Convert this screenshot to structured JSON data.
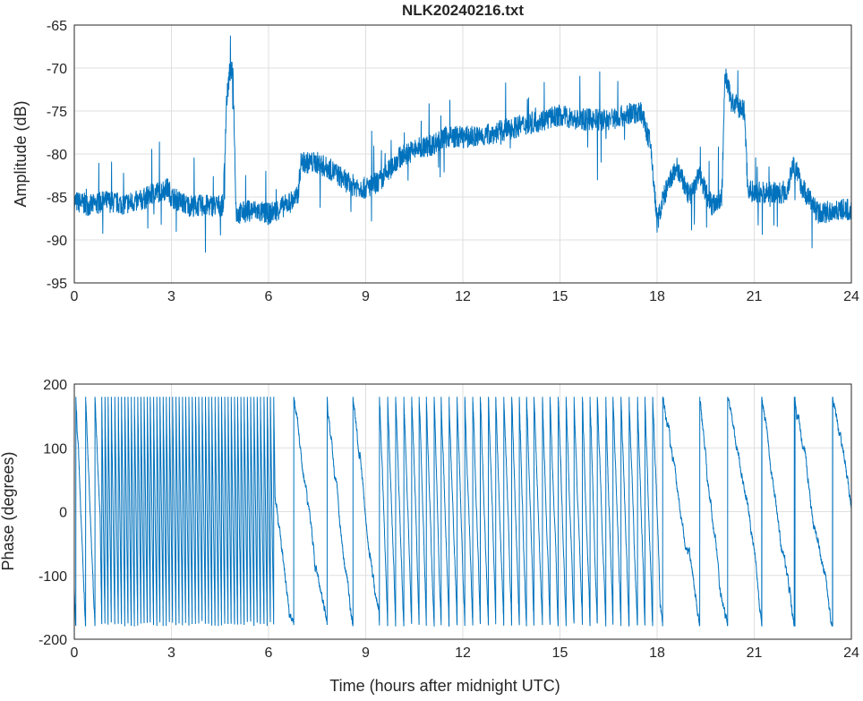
{
  "chart_data": [
    {
      "type": "line",
      "title": "NLK20240216.txt",
      "xlabel": "",
      "ylabel": "Amplitude (dB)",
      "xlim": [
        0,
        24
      ],
      "ylim": [
        -95,
        -65
      ],
      "xticks": [
        0,
        3,
        6,
        9,
        12,
        15,
        18,
        21,
        24
      ],
      "yticks": [
        -65,
        -70,
        -75,
        -80,
        -85,
        -90,
        -95
      ],
      "grid": true,
      "color": "#0072bd",
      "x": [
        0,
        0.5,
        1,
        1.5,
        2,
        2.5,
        2.9,
        3,
        3.5,
        4,
        4.6,
        4.7,
        4.8,
        4.9,
        5.0,
        5.5,
        6,
        6.5,
        6.9,
        7,
        7.5,
        8,
        8.5,
        9,
        9.5,
        10,
        10.5,
        11,
        11.5,
        12,
        12.5,
        13,
        13.5,
        14,
        14.5,
        15,
        15.5,
        16,
        16.5,
        17,
        17.5,
        17.8,
        18,
        18.2,
        18.6,
        19,
        19.3,
        19.7,
        20,
        20.1,
        20.3,
        20.7,
        20.8,
        21,
        21.5,
        22,
        22.2,
        22.5,
        23,
        23.5,
        24
      ],
      "values": [
        -85.5,
        -86,
        -85.5,
        -85.8,
        -85.5,
        -84.5,
        -84,
        -85,
        -86,
        -86,
        -86,
        -74,
        -70.5,
        -70.5,
        -87,
        -86.5,
        -87,
        -86,
        -85,
        -81,
        -81,
        -82,
        -83.5,
        -84,
        -83,
        -80.5,
        -79.5,
        -79,
        -78,
        -78,
        -78,
        -77.5,
        -77,
        -76.5,
        -76,
        -75.5,
        -76,
        -76,
        -76,
        -75.5,
        -75,
        -79,
        -88,
        -85,
        -81.5,
        -85,
        -82.5,
        -86,
        -85,
        -70.5,
        -74,
        -75,
        -84,
        -84.5,
        -84.5,
        -84.5,
        -81,
        -84,
        -87,
        -86.5,
        -86.5
      ]
    },
    {
      "type": "line",
      "title": "",
      "xlabel": "Time (hours after midnight UTC)",
      "ylabel": "Phase (degrees)",
      "xlim": [
        0,
        24
      ],
      "ylim": [
        -200,
        200
      ],
      "xticks": [
        0,
        3,
        6,
        9,
        12,
        15,
        18,
        21,
        24
      ],
      "yticks": [
        200,
        100,
        0,
        -100,
        -200
      ],
      "grid": true,
      "color": "#0072bd",
      "wrap_range": [
        -180,
        180
      ],
      "initial_phase": -120,
      "rate_segments_deg_per_hour": [
        {
          "from": 0,
          "to": 0.8,
          "rate": -1200
        },
        {
          "from": 0.8,
          "to": 6.2,
          "rate": -3600
        },
        {
          "from": 6.2,
          "to": 9.4,
          "rate": -340
        },
        {
          "from": 9.4,
          "to": 18.1,
          "rate": -1500
        },
        {
          "from": 18.1,
          "to": 24,
          "rate": -330
        }
      ]
    }
  ]
}
